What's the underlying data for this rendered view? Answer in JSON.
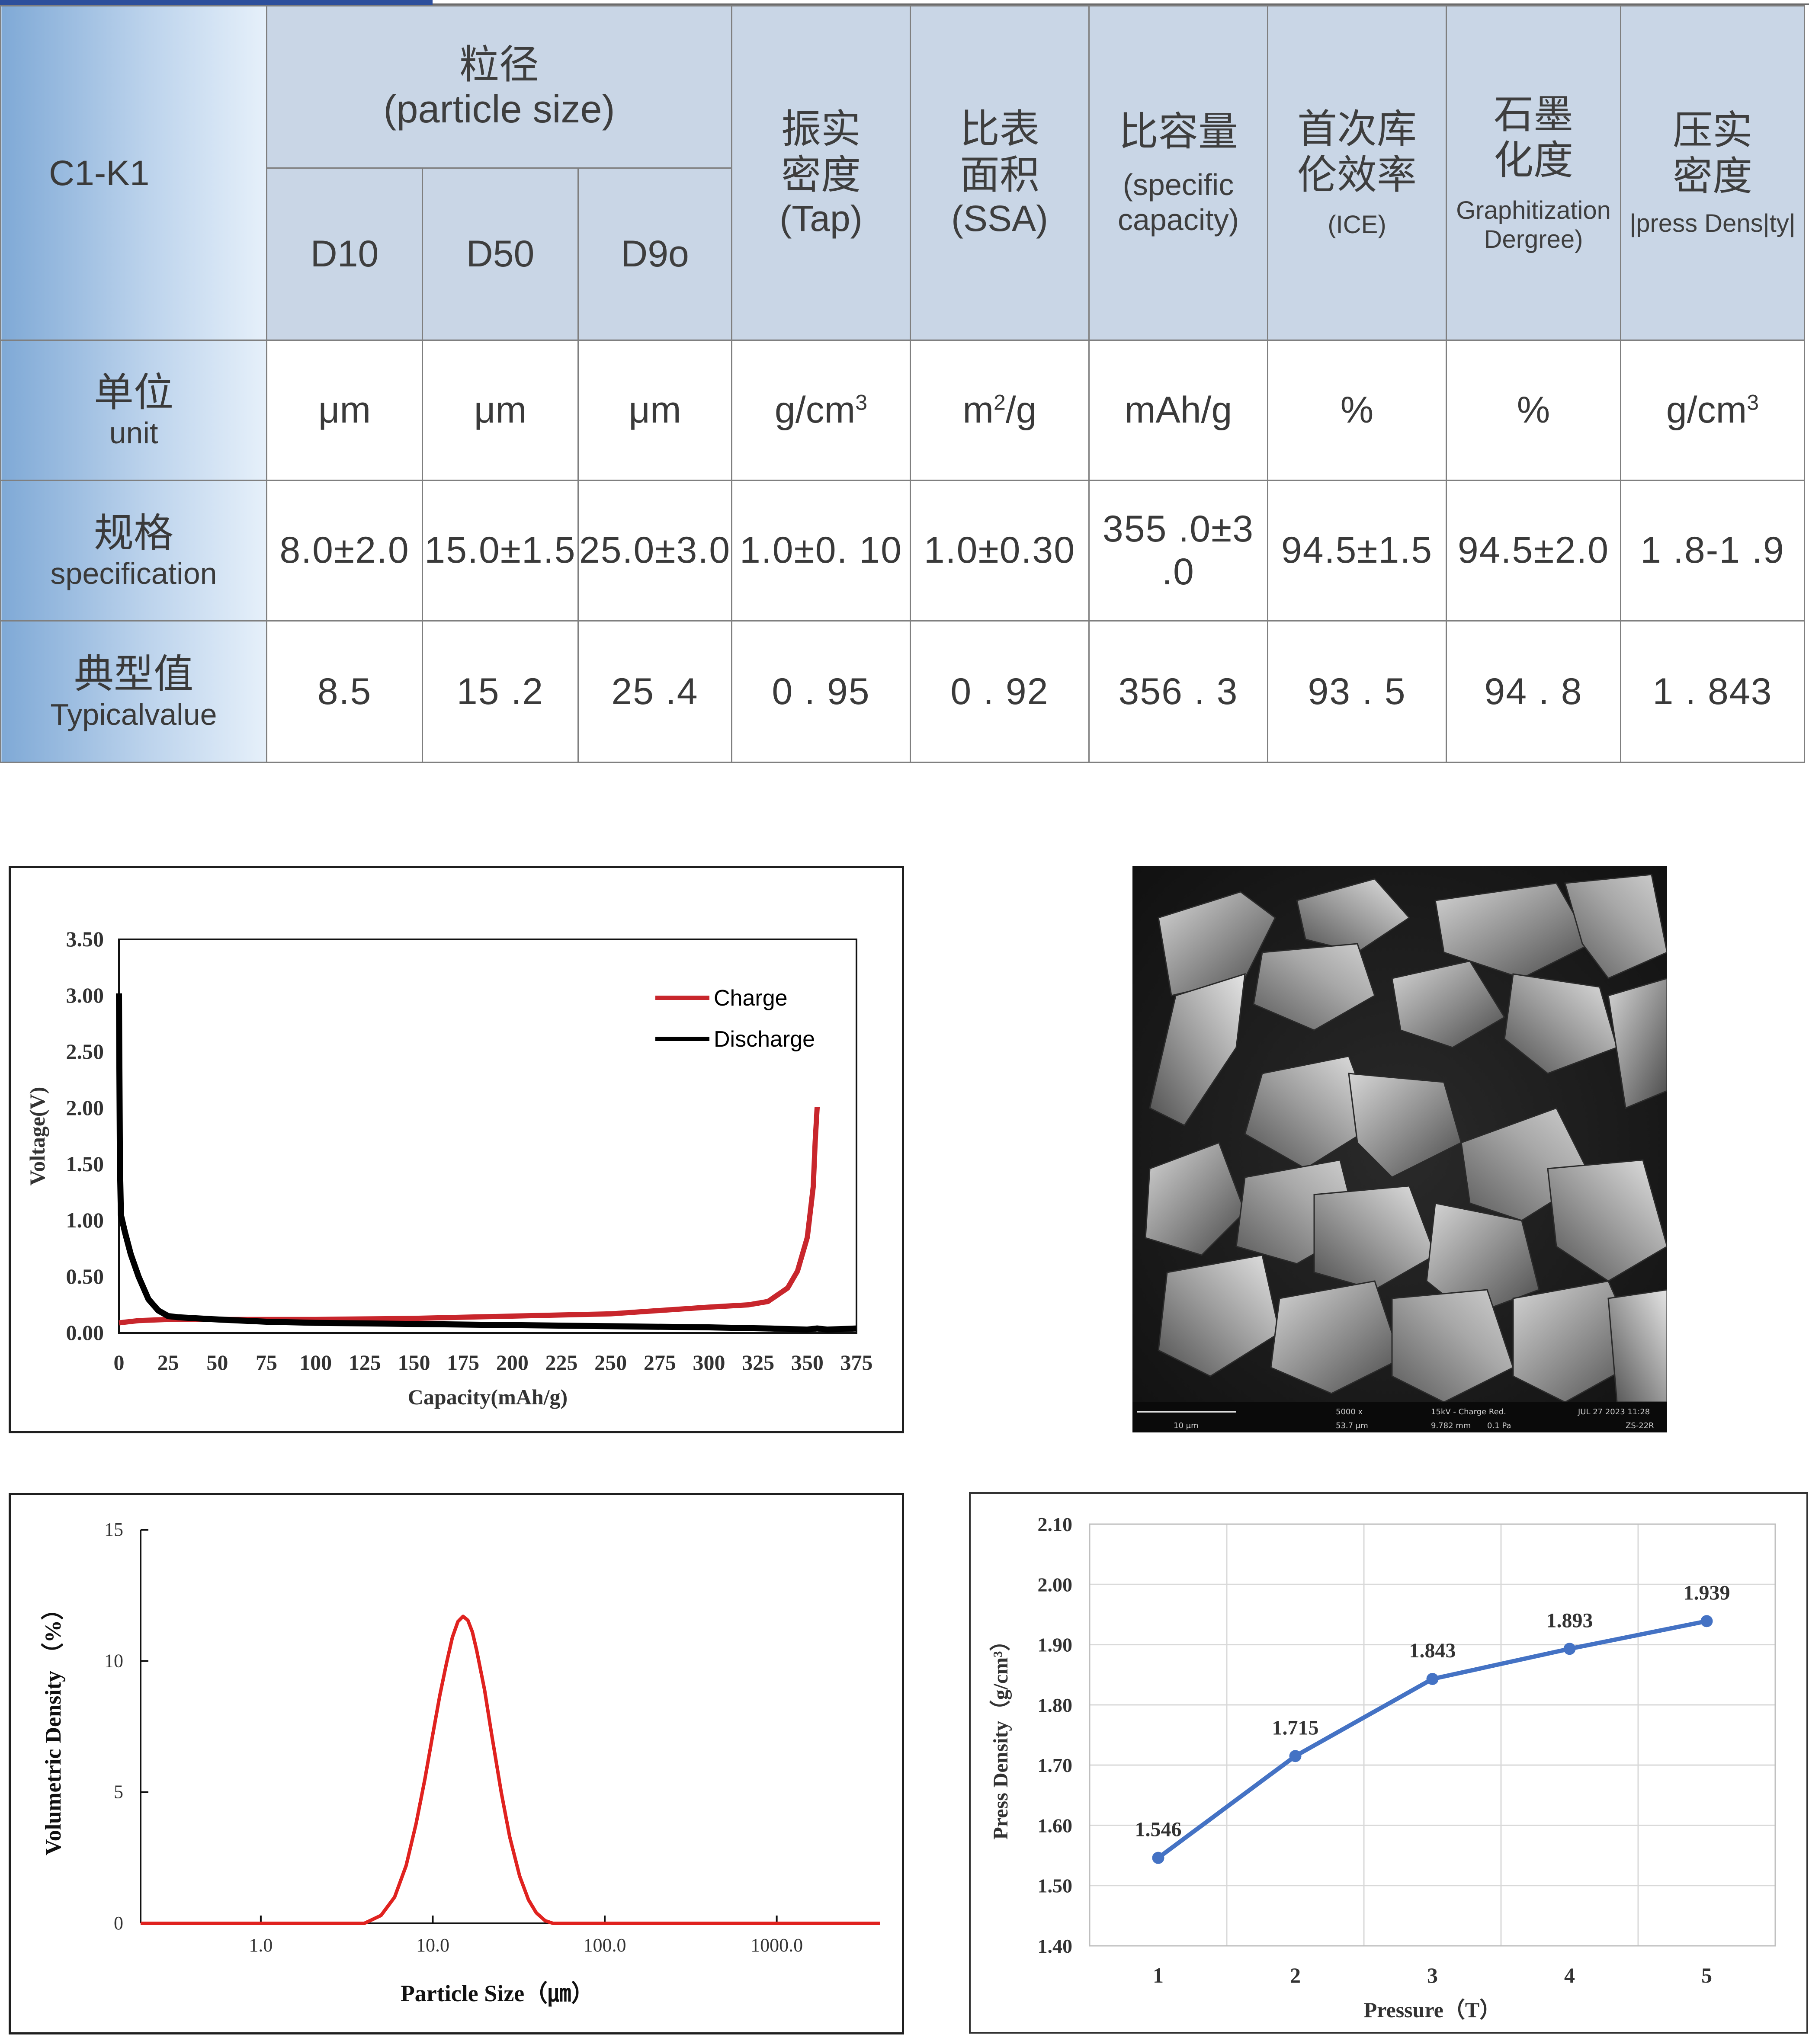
{
  "table": {
    "product": "C1-K1",
    "headers": {
      "particle_size": {
        "cn": "粒径",
        "en": "(particle size)"
      },
      "d10": "D10",
      "d50": "D50",
      "d90": "D9o",
      "tap": {
        "cn1": "振实",
        "cn2": "密度",
        "en": "(Tap)"
      },
      "ssa": {
        "cn1": "比表",
        "cn2": "面积",
        "en": "(SSA)"
      },
      "capacity": {
        "cn": "比容量",
        "en1": "(specific",
        "en2": "capacity)"
      },
      "ice": {
        "cn1": "首次库",
        "cn2": "伦效率",
        "en": "(ICE)"
      },
      "graph": {
        "cn1": "石墨",
        "cn2": "化度",
        "en1": "Graphitization",
        "en2": "Dergree)"
      },
      "press": {
        "cn1": "压实",
        "cn2": "密度",
        "en": "|press Dens|ty|"
      }
    },
    "rows": {
      "unit": {
        "cn": "单位",
        "en": "unit",
        "values": [
          "μm",
          "μm",
          "μm",
          "g/cm",
          "m",
          "mAh/g",
          "%",
          "%",
          "g/cm"
        ],
        "sup_tap": "3",
        "sup_ssa": "2",
        "ssa_tail": "/g",
        "sup_press": "3"
      },
      "spec": {
        "cn": "规格",
        "en": "specification",
        "values": [
          "8.0±2.0",
          "15.0±1.5",
          "25.0±3.0",
          "1.0±0. 10",
          "1.0±0.30",
          "355 .0±3 .0",
          "94.5±1.5",
          "94.5±2.0",
          "1 .8-1 .9"
        ]
      },
      "typical": {
        "cn": "典型值",
        "en": "Typicalvalue",
        "values": [
          "8.5",
          "15 .2",
          "25 .4",
          "0 . 95",
          "0 . 92",
          "356 . 3",
          "93 . 5",
          "94 . 8",
          "1 . 843"
        ]
      }
    }
  },
  "charts": {
    "charge_discharge": {
      "type": "line",
      "xlabel": "Capacity(mAh/g)",
      "ylabel": "Voltage(V)",
      "xlim": [
        0,
        375
      ],
      "ylim": [
        0,
        3.5
      ],
      "x_ticks": [
        "0",
        "25",
        "50",
        "75",
        "100",
        "125",
        "150",
        "175",
        "200",
        "225",
        "250",
        "275",
        "300",
        "325",
        "350",
        "375"
      ],
      "y_ticks": [
        "0.00",
        "0.50",
        "1.00",
        "1.50",
        "2.00",
        "2.50",
        "3.00",
        "3.50"
      ],
      "legend": [
        "Charge",
        "Discharge"
      ],
      "legend_position": "top-right",
      "colors": {
        "charge": "#c8262c",
        "discharge": "#000000"
      },
      "series": [
        {
          "name": "Charge",
          "x": [
            0,
            10,
            25,
            50,
            100,
            150,
            200,
            250,
            300,
            320,
            330,
            340,
            345,
            350,
            353,
            354,
            355
          ],
          "y": [
            0.09,
            0.11,
            0.12,
            0.12,
            0.12,
            0.13,
            0.15,
            0.17,
            0.23,
            0.25,
            0.28,
            0.4,
            0.55,
            0.85,
            1.3,
            1.7,
            2.01
          ]
        },
        {
          "name": "Discharge",
          "x": [
            0,
            0.5,
            1,
            3,
            6,
            10,
            15,
            20,
            25,
            30,
            40,
            50,
            75,
            100,
            150,
            200,
            250,
            300,
            330,
            350,
            355,
            360,
            375
          ],
          "y": [
            3.02,
            1.5,
            1.05,
            0.9,
            0.7,
            0.5,
            0.3,
            0.2,
            0.15,
            0.14,
            0.13,
            0.12,
            0.1,
            0.09,
            0.08,
            0.07,
            0.06,
            0.05,
            0.04,
            0.03,
            0.04,
            0.03,
            0.04
          ]
        }
      ]
    },
    "particle_size": {
      "type": "line",
      "xlabel": "Particle Size（㎛）",
      "ylabel": "Volumetric Density （%）",
      "x_scale": "log",
      "x_ticks": [
        "1.0",
        "10.0",
        "100.0",
        "1000.0"
      ],
      "y_ticks": [
        "0",
        "5",
        "10",
        "15"
      ],
      "ylim": [
        0,
        15
      ],
      "color": "#e0221f",
      "series": [
        {
          "name": "",
          "x": [
            0.2,
            4,
            5,
            6,
            7,
            8,
            9,
            10,
            11,
            12,
            13,
            14,
            15,
            16,
            17,
            18,
            20,
            22,
            25,
            28,
            32,
            36,
            40,
            45,
            50,
            4000
          ],
          "y": [
            0,
            0,
            0.3,
            1.0,
            2.2,
            3.8,
            5.5,
            7.2,
            8.7,
            9.9,
            10.9,
            11.5,
            11.7,
            11.55,
            11.1,
            10.4,
            8.9,
            7.2,
            5.0,
            3.3,
            1.8,
            0.9,
            0.4,
            0.1,
            0,
            0
          ]
        }
      ]
    },
    "press_density": {
      "type": "line",
      "xlabel": "Pressure（T）",
      "ylabel": "Press Density（g/cm³）",
      "categories": [
        "1",
        "2",
        "3",
        "4",
        "5"
      ],
      "y_ticks": [
        "1.40",
        "1.50",
        "1.60",
        "1.70",
        "1.80",
        "1.90",
        "2.00",
        "2.10"
      ],
      "ylim": [
        1.4,
        2.1
      ],
      "color": "#4472c4",
      "values": [
        1.546,
        1.715,
        1.843,
        1.893,
        1.939
      ],
      "data_labels": [
        "1.546",
        "1.715",
        "1.843",
        "1.893",
        "1.939"
      ]
    }
  },
  "sem": {
    "mag": "5000 x",
    "scale": "10 μm",
    "hfw": "53.7 μm",
    "info": "15kV - Charge Red.",
    "wd": "9.782 mm",
    "pressure": "0.1 Pa",
    "date": "JUL 27 2023 11:28",
    "detector": "ZS-22R"
  }
}
